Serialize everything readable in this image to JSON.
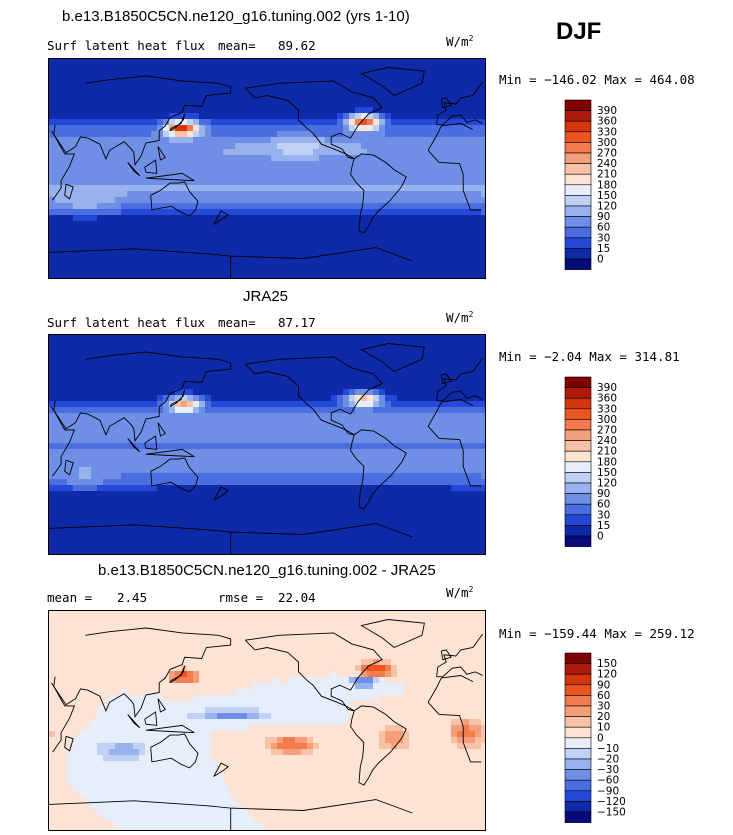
{
  "season": "DJF",
  "panels": [
    {
      "title": "b.e13.B1850C5CN.ne120_g16.tuning.002 (yrs 1-10)",
      "variable": "Surf latent heat flux",
      "stat1": "mean=",
      "stat1_value": "89.62",
      "stat2": "",
      "stat2_value": "",
      "units": "W/m",
      "units_sup": "2",
      "minmax": "Min = −146.02 Max = 464.08",
      "colorbar_labels": [
        "390",
        "360",
        "330",
        "300",
        "270",
        "240",
        "210",
        "180",
        "150",
        "120",
        "90",
        "60",
        "30",
        "15",
        "0"
      ],
      "colorbar_colors": [
        "#7f0000",
        "#b01a0a",
        "#d6360e",
        "#eb5620",
        "#f27c4d",
        "#f59f7a",
        "#f8c2a6",
        "#fce3d4",
        "#e6eefc",
        "#bfd1f5",
        "#98b2ee",
        "#6f8fe6",
        "#4a6ee0",
        "#2448d8",
        "#0e2aa8",
        "#060a7a"
      ]
    },
    {
      "title": "JRA25",
      "variable": "Surf latent heat flux",
      "stat1": "mean=",
      "stat1_value": "87.17",
      "stat2": "",
      "stat2_value": "",
      "units": "W/m",
      "units_sup": "2",
      "minmax": "Min =  −2.04 Max = 314.81",
      "colorbar_labels": [
        "390",
        "360",
        "330",
        "300",
        "270",
        "240",
        "210",
        "180",
        "150",
        "120",
        "90",
        "60",
        "30",
        "15",
        "0"
      ],
      "colorbar_colors": [
        "#7f0000",
        "#b01a0a",
        "#d6360e",
        "#eb5620",
        "#f27c4d",
        "#f59f7a",
        "#f8c2a6",
        "#fce3d4",
        "#e6eefc",
        "#bfd1f5",
        "#98b2ee",
        "#6f8fe6",
        "#4a6ee0",
        "#2448d8",
        "#0e2aa8",
        "#060a7a"
      ]
    },
    {
      "title": "b.e13.B1850C5CN.ne120_g16.tuning.002 - JRA25",
      "variable": "",
      "stat1": "mean =",
      "stat1_value": "2.45",
      "stat2": "rmse =",
      "stat2_value": "22.04",
      "units": "W/m",
      "units_sup": "2",
      "minmax": "Min = −159.44 Max = 259.12",
      "colorbar_labels": [
        "150",
        "120",
        "90",
        "60",
        "30",
        "20",
        "10",
        "0",
        "−10",
        "−20",
        "−30",
        "−60",
        "−90",
        "−120",
        "−150"
      ],
      "colorbar_colors": [
        "#7f0000",
        "#b01a0a",
        "#d6360e",
        "#eb5620",
        "#f27c4d",
        "#f59f7a",
        "#f8c2a6",
        "#fce3d4",
        "#e6eefc",
        "#bfd1f5",
        "#98b2ee",
        "#6f8fe6",
        "#4a6ee0",
        "#2448d8",
        "#0e2aa8",
        "#060a7a"
      ]
    }
  ],
  "chart_data": [
    {
      "type": "heatmap",
      "title": "b.e13.B1850C5CN.ne120_g16.tuning.002 (yrs 1-10)",
      "variable": "Surf latent heat flux",
      "units": "W/m2",
      "mean": 89.62,
      "min": -146.02,
      "max": 464.08,
      "contour_levels": [
        0,
        15,
        30,
        60,
        90,
        120,
        150,
        180,
        210,
        240,
        270,
        300,
        330,
        360,
        390
      ]
    },
    {
      "type": "heatmap",
      "title": "JRA25",
      "variable": "Surf latent heat flux",
      "units": "W/m2",
      "mean": 87.17,
      "min": -2.04,
      "max": 314.81,
      "contour_levels": [
        0,
        15,
        30,
        60,
        90,
        120,
        150,
        180,
        210,
        240,
        270,
        300,
        330,
        360,
        390
      ]
    },
    {
      "type": "heatmap",
      "title": "b.e13.B1850C5CN.ne120_g16.tuning.002 - JRA25",
      "units": "W/m2",
      "mean": 2.45,
      "rmse": 22.04,
      "min": -159.44,
      "max": 259.12,
      "contour_levels": [
        -150,
        -120,
        -90,
        -60,
        -30,
        -20,
        -10,
        0,
        10,
        20,
        30,
        60,
        90,
        120,
        150
      ]
    }
  ]
}
